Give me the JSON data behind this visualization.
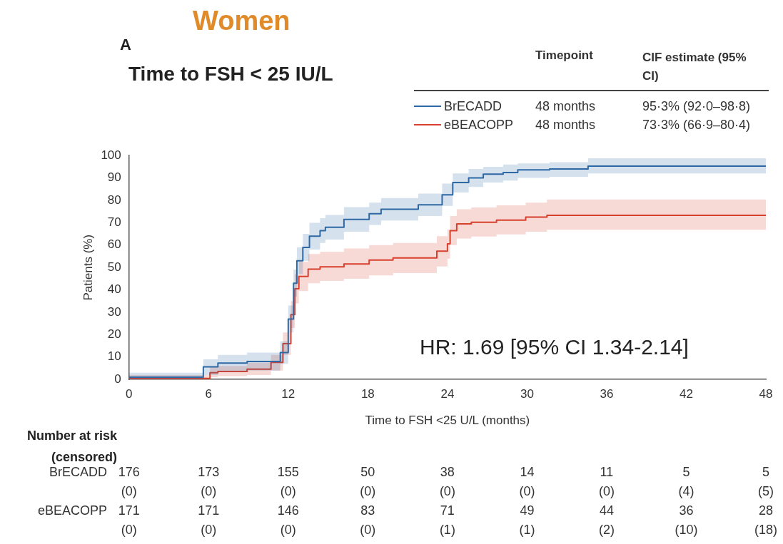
{
  "chart_data": {
    "type": "step",
    "title": "Women",
    "subtitle": "Time to FSH < 25 IU/L",
    "xlabel": "Time to FSH <25 U/L (months)",
    "ylabel": "Patients (%)",
    "xlim": [
      0,
      48
    ],
    "xticks": [
      0,
      6,
      12,
      18,
      24,
      30,
      36,
      42,
      48
    ],
    "ylim": [
      0,
      100
    ],
    "yticks": [
      0,
      10,
      20,
      30,
      40,
      50,
      60,
      70,
      80,
      90,
      100
    ],
    "legend": "top right",
    "marker": "none",
    "line_style": "solid",
    "series": [
      {
        "name": "BrECADD",
        "color": "#2f6aa6",
        "x": [
          0,
          5.6,
          6.7,
          8.9,
          11.4,
          12.0,
          12.4,
          12.65,
          13.1,
          13.6,
          14.4,
          14.8,
          16.2,
          18.1,
          19,
          21.8,
          23.6,
          24.4,
          25.6,
          26.7,
          28.2,
          29.3,
          31.7,
          34.6,
          38.2,
          48
        ],
        "values": [
          0,
          1,
          5.6,
          7.3,
          8,
          12,
          27,
          43,
          53,
          59,
          64,
          66.5,
          68,
          71.5,
          74,
          76,
          78,
          82.5,
          88,
          90,
          91.7,
          92.4,
          93.6,
          94,
          95.3,
          95.3
        ],
        "lower": [
          0,
          0,
          2,
          3.5,
          4,
          7,
          21,
          37,
          47,
          53,
          58,
          61,
          62.5,
          66,
          69,
          71,
          73,
          77.5,
          83.5,
          86,
          88,
          88.8,
          90,
          90.5,
          92,
          92
        ],
        "upper": [
          0,
          3,
          9,
          11,
          12,
          17,
          33,
          49,
          59,
          65,
          70,
          72,
          73.5,
          77,
          79,
          81,
          83,
          87.5,
          92,
          94,
          95,
          96,
          96.5,
          97,
          98.8,
          98.8
        ]
      },
      {
        "name": "eBEACOPP",
        "color": "#d9402f",
        "x": [
          0,
          6.1,
          6.7,
          8.9,
          10.7,
          11.6,
          12.2,
          12.5,
          12.8,
          13.5,
          14.4,
          16.2,
          18.1,
          19.9,
          23.2,
          24.0,
          24.2,
          24.7,
          25.8,
          27.7,
          29.9,
          31.5,
          33.2,
          48
        ],
        "values": [
          0,
          0.5,
          3,
          3.6,
          4.6,
          7.6,
          16,
          29,
          40.5,
          46,
          49.3,
          50.3,
          51.6,
          53.3,
          54.3,
          57.3,
          60.6,
          66.5,
          69.5,
          70.2,
          71.2,
          72.5,
          73.3,
          73.3
        ],
        "lower": [
          0,
          0,
          1,
          1.5,
          2,
          4,
          11,
          23,
          34,
          39.5,
          43,
          44,
          45,
          46.5,
          47.5,
          50.5,
          54,
          60,
          63,
          63.8,
          64.8,
          66,
          66.9,
          66.9
        ],
        "upper": [
          0,
          2,
          5.5,
          6,
          7.5,
          11,
          21,
          35,
          47,
          52.5,
          56,
          57,
          58.5,
          60,
          61,
          64,
          67,
          73,
          76,
          76.8,
          77.8,
          79,
          80.4,
          80.4
        ]
      }
    ],
    "annotations": [
      "A",
      "Timepoint",
      "CIF estimate (95% CI)",
      "48 months",
      "95·3% (92·0–98·8)",
      "48 months",
      "73·3% (66·9–80·4)",
      "HR: 1.69 [95% CI 1.34-2.14]",
      "Number at risk (censored)",
      "176",
      "173",
      "155",
      "50",
      "38",
      "14",
      "11",
      "5",
      "5",
      "(0)",
      "(0)",
      "(0)",
      "(0)",
      "(0)",
      "(0)",
      "(0)",
      "(4)",
      "(5)",
      "171",
      "171",
      "146",
      "83",
      "71",
      "49",
      "44",
      "36",
      "28",
      "(0)",
      "(0)",
      "(0)",
      "(0)",
      "(1)",
      "(1)",
      "(2)",
      "(10)",
      "(18)"
    ]
  }
}
